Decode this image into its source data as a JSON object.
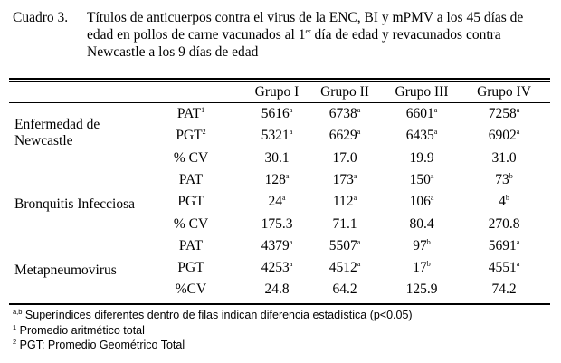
{
  "caption": {
    "label": "Cuadro 3.",
    "line1": "Títulos de anticuerpos contra el virus de la ENC, BI y mPMV a los 45 días de",
    "line2_pre": "edad en pollos de carne vacunados al 1",
    "line2_sup": "er",
    "line2_post": " día de edad y revacunados contra",
    "line3": "Newcastle a los 9 días de edad"
  },
  "table": {
    "headers": [
      "Grupo I",
      "Grupo II",
      "Grupo III",
      "Grupo IV"
    ],
    "groups": [
      {
        "name_lines": [
          "Enfermedad de",
          "Newcastle"
        ],
        "rows": [
          {
            "label": "PAT",
            "label_sup": "1",
            "cells": [
              {
                "v": "5616",
                "s": "a"
              },
              {
                "v": "6738",
                "s": "a"
              },
              {
                "v": "6601",
                "s": "a"
              },
              {
                "v": "7258",
                "s": "a"
              }
            ]
          },
          {
            "label": "PGT",
            "label_sup": "2",
            "cells": [
              {
                "v": "5321",
                "s": "a"
              },
              {
                "v": "6629",
                "s": "a"
              },
              {
                "v": "6435",
                "s": "a"
              },
              {
                "v": "6902",
                "s": "a"
              }
            ]
          },
          {
            "label": "% CV",
            "label_sup": "",
            "cells": [
              {
                "v": "30.1",
                "s": ""
              },
              {
                "v": "17.0",
                "s": ""
              },
              {
                "v": "19.9",
                "s": ""
              },
              {
                "v": "31.0",
                "s": ""
              }
            ]
          }
        ]
      },
      {
        "name_lines": [
          "Bronquitis Infecciosa"
        ],
        "rows": [
          {
            "label": "PAT",
            "label_sup": "",
            "cells": [
              {
                "v": "128",
                "s": "a"
              },
              {
                "v": "173",
                "s": "a"
              },
              {
                "v": "150",
                "s": "a"
              },
              {
                "v": "73",
                "s": "b"
              }
            ]
          },
          {
            "label": "PGT",
            "label_sup": "",
            "cells": [
              {
                "v": "24",
                "s": "a"
              },
              {
                "v": "112",
                "s": "a"
              },
              {
                "v": "106",
                "s": "a"
              },
              {
                "v": "4",
                "s": "b"
              }
            ]
          },
          {
            "label": "% CV",
            "label_sup": "",
            "cells": [
              {
                "v": "175.3",
                "s": ""
              },
              {
                "v": "71.1",
                "s": ""
              },
              {
                "v": "80.4",
                "s": ""
              },
              {
                "v": "270.8",
                "s": ""
              }
            ]
          }
        ]
      },
      {
        "name_lines": [
          "Metapneumovirus"
        ],
        "rows": [
          {
            "label": "PAT",
            "label_sup": "",
            "cells": [
              {
                "v": "4379",
                "s": "a"
              },
              {
                "v": "5507",
                "s": "a"
              },
              {
                "v": "97",
                "s": "b"
              },
              {
                "v": "5691",
                "s": "a"
              }
            ]
          },
          {
            "label": "PGT",
            "label_sup": "",
            "cells": [
              {
                "v": "4253",
                "s": "a"
              },
              {
                "v": "4512",
                "s": "a"
              },
              {
                "v": "17",
                "s": "b"
              },
              {
                "v": "4551",
                "s": "a"
              }
            ]
          },
          {
            "label": "%CV",
            "label_sup": "",
            "cells": [
              {
                "v": "24.8",
                "s": ""
              },
              {
                "v": "64.2",
                "s": ""
              },
              {
                "v": "125.9",
                "s": ""
              },
              {
                "v": "74.2",
                "s": ""
              }
            ]
          }
        ]
      }
    ]
  },
  "footnotes": [
    {
      "mark": "a,b",
      "text": " Superíndices diferentes dentro de filas indican diferencia estadística (p<0.05)"
    },
    {
      "mark": "1",
      "text": " Promedio aritmético total"
    },
    {
      "mark": "2",
      "text": " PGT: Promedio Geométrico Total"
    }
  ]
}
